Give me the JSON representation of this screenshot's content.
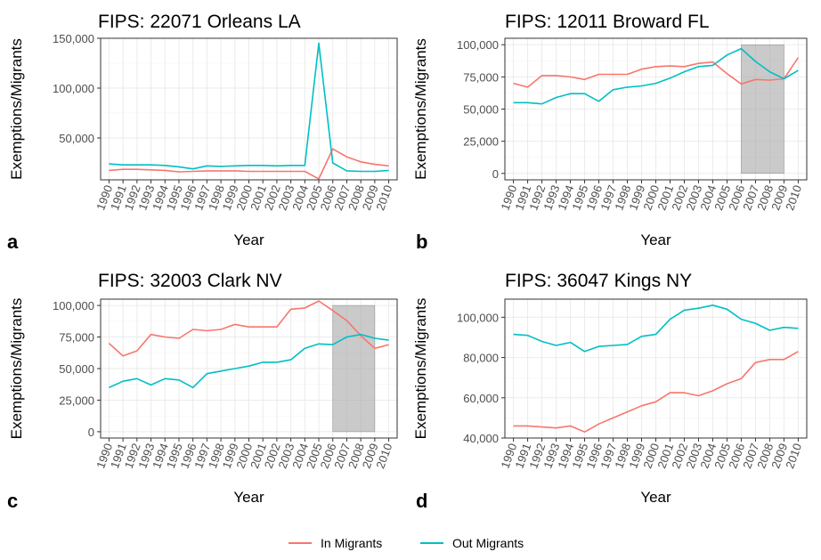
{
  "colors": {
    "in_migrants": "#F8766D",
    "out_migrants": "#00BFC4",
    "shade": "#bfbfbf",
    "grid": "#ebebeb"
  },
  "legend": {
    "items": [
      "In Migrants",
      "Out Migrants"
    ]
  },
  "chart_data": [
    {
      "type": "line",
      "letter": "a",
      "title": "FIPS: 22071 Orleans LA",
      "xlabel": "Year",
      "ylabel": "Exemptions/Migrants",
      "x": [
        1990,
        1991,
        1992,
        1993,
        1994,
        1995,
        1996,
        1997,
        1998,
        1999,
        2000,
        2001,
        2002,
        2003,
        2004,
        2005,
        2006,
        2007,
        2008,
        2009,
        2010
      ],
      "ylim": [
        8000,
        150000
      ],
      "yticks": [
        50000,
        100000,
        150000
      ],
      "ytick_labels": [
        "50,000",
        "100,000",
        "150,000"
      ],
      "shade": null,
      "series": [
        {
          "name": "In Migrants",
          "values": [
            17500,
            18500,
            18500,
            18000,
            17500,
            16000,
            16500,
            17000,
            17000,
            17000,
            16500,
            16500,
            16500,
            16500,
            16500,
            9000,
            39000,
            31000,
            26000,
            23500,
            22000
          ]
        },
        {
          "name": "Out Migrants",
          "values": [
            24000,
            23000,
            23000,
            23000,
            22500,
            21000,
            19000,
            22000,
            21500,
            22000,
            22500,
            22500,
            22000,
            22500,
            22500,
            145000,
            25000,
            17000,
            16500,
            16500,
            17500
          ]
        }
      ]
    },
    {
      "type": "line",
      "letter": "b",
      "title": "FIPS: 12011 Broward FL",
      "xlabel": "Year",
      "ylabel": "Exemptions/Migrants",
      "x": [
        1990,
        1991,
        1992,
        1993,
        1994,
        1995,
        1996,
        1997,
        1998,
        1999,
        2000,
        2001,
        2002,
        2003,
        2004,
        2005,
        2006,
        2007,
        2008,
        2009,
        2010
      ],
      "ylim": [
        -5000,
        105000
      ],
      "yticks": [
        0,
        25000,
        50000,
        75000,
        100000
      ],
      "ytick_labels": [
        "0",
        "25,000",
        "50,000",
        "75,000",
        "100,000"
      ],
      "shade": {
        "x": [
          2006,
          2009
        ],
        "y": [
          0,
          100000
        ]
      },
      "series": [
        {
          "name": "In Migrants",
          "values": [
            70000,
            67000,
            76000,
            76000,
            75000,
            73000,
            77000,
            77000,
            77000,
            81000,
            83000,
            83500,
            83000,
            85500,
            86500,
            77500,
            69500,
            73000,
            72500,
            73500,
            90000
          ]
        },
        {
          "name": "Out Migrants",
          "values": [
            55000,
            55000,
            54000,
            59000,
            62000,
            62000,
            56000,
            65000,
            67000,
            68000,
            70000,
            74000,
            79000,
            83000,
            84000,
            92000,
            97000,
            87000,
            79000,
            73500,
            80000
          ]
        }
      ]
    },
    {
      "type": "line",
      "letter": "c",
      "title": "FIPS: 32003 Clark NV",
      "xlabel": "Year",
      "ylabel": "Exemptions/Migrants",
      "x": [
        1990,
        1991,
        1992,
        1993,
        1994,
        1995,
        1996,
        1997,
        1998,
        1999,
        2000,
        2001,
        2002,
        2003,
        2004,
        2005,
        2006,
        2007,
        2008,
        2009,
        2010
      ],
      "ylim": [
        -5000,
        105000
      ],
      "yticks": [
        0,
        25000,
        50000,
        75000,
        100000
      ],
      "ytick_labels": [
        "0",
        "25,000",
        "50,000",
        "75,000",
        "100,000"
      ],
      "shade": {
        "x": [
          2006,
          2009
        ],
        "y": [
          0,
          100000
        ]
      },
      "series": [
        {
          "name": "In Migrants",
          "values": [
            70000,
            60000,
            64000,
            77000,
            75000,
            74000,
            81000,
            80000,
            81000,
            85000,
            83000,
            83000,
            83000,
            97000,
            98000,
            103500,
            96000,
            88000,
            76000,
            66000,
            69000
          ]
        },
        {
          "name": "Out Migrants",
          "values": [
            35000,
            40000,
            42000,
            37000,
            42000,
            41000,
            35000,
            46000,
            48000,
            50000,
            52000,
            55000,
            55000,
            57000,
            66000,
            69500,
            69000,
            75000,
            77000,
            74000,
            72500
          ]
        }
      ]
    },
    {
      "type": "line",
      "letter": "d",
      "title": "FIPS: 36047 Kings NY",
      "xlabel": "Year",
      "ylabel": "Exemptions/Migrants",
      "x": [
        1990,
        1991,
        1992,
        1993,
        1994,
        1995,
        1996,
        1997,
        1998,
        1999,
        2000,
        2001,
        2002,
        2003,
        2004,
        2005,
        2006,
        2007,
        2008,
        2009,
        2010
      ],
      "ylim": [
        40000,
        109000
      ],
      "yticks": [
        40000,
        60000,
        80000,
        100000
      ],
      "ytick_labels": [
        "40,000",
        "60,000",
        "80,000",
        "100,000"
      ],
      "shade": null,
      "series": [
        {
          "name": "In Migrants",
          "values": [
            46000,
            46000,
            45500,
            45000,
            46000,
            43000,
            47000,
            50000,
            53000,
            56000,
            58000,
            62500,
            62500,
            61000,
            63500,
            67000,
            69500,
            77500,
            79000,
            79000,
            83000
          ]
        },
        {
          "name": "Out Migrants",
          "values": [
            91500,
            91000,
            88000,
            86000,
            87500,
            83000,
            85500,
            86000,
            86500,
            90500,
            91500,
            99000,
            103500,
            104500,
            106000,
            104000,
            99000,
            97000,
            93500,
            95000,
            94500
          ]
        }
      ]
    }
  ]
}
